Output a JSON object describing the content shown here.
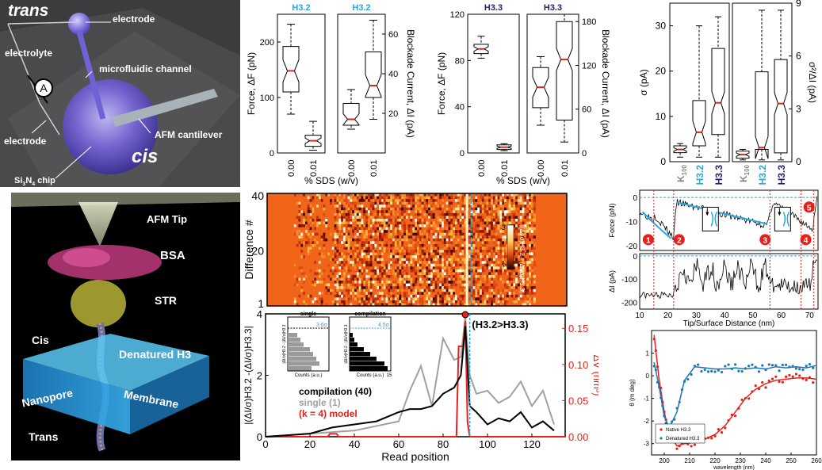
{
  "panel_a": {
    "trans": "trans",
    "electrode_top": "electrode",
    "electrolyte": "electrolyte",
    "meter": "A",
    "microfluidic": "microfluidic channel",
    "electrode_bottom": "electrode",
    "cantilever": "AFM cantilever",
    "cis": "cis",
    "chip_prefix": "Si",
    "chip_sub1": "3",
    "chip_mid": "N",
    "chip_sub2": "4",
    "chip_suffix": " chip"
  },
  "panel_b": {
    "afm_tip": "AFM Tip",
    "bsa": "BSA",
    "str": "STR",
    "cis": "Cis",
    "denatured": "Denatured H3",
    "membrane": "Membrane",
    "nanopore": "Nanopore",
    "trans": "Trans"
  },
  "colors": {
    "h32": "#29a8e0",
    "h33": "#1f1f6e",
    "red": "#e8201c",
    "blue": "#1f77b4"
  },
  "box_h32": {
    "left_title": "H3.2",
    "right_title": "H3.2",
    "left_ylabel": "Force, ΔF (pN)",
    "right_ylabel": "Blockade Current, ΔI (pA)",
    "left_ticks": [
      "0",
      "100",
      "200"
    ],
    "right_ticks": [
      "20",
      "40",
      "60"
    ],
    "x_ticks": [
      "0.00",
      "0.01"
    ],
    "xlabel": "% SDS (w/v)"
  },
  "box_h33": {
    "left_title": "H3.3",
    "right_title": "H3.3",
    "left_ylabel": "Force, ΔF (pN)",
    "right_ylabel": "Blockade Current, ΔI (pA)",
    "left_ticks": [
      "0",
      "40",
      "80",
      "120"
    ],
    "right_ticks": [
      "0",
      "60",
      "120",
      "180"
    ],
    "x_ticks": [
      "0.00",
      "0.01"
    ],
    "xlabel": "% SDS (w/v)"
  },
  "box_sigma": {
    "left_ylabel": "σ (pA)",
    "right_ylabel": "σ²/ΔI (pA)",
    "left_ticks": [
      "0",
      "10",
      "20",
      "30"
    ],
    "right_ticks": [
      "0",
      "3",
      "6",
      "9"
    ],
    "cats": [
      "K",
      "H3.2",
      "H3.3"
    ],
    "k_sub": "100"
  },
  "heatmap": {
    "ylabel": "Difference #",
    "y_ticks": [
      "1",
      "20",
      "40"
    ],
    "cb_ticks": [
      "3",
      "0"
    ],
    "cb_label": "|(ΔI/σ)H3.2 - (ΔI/σ)H3.3|"
  },
  "diff_plot": {
    "ylabel": "|(ΔI/σ)H3.2 -(ΔI/σ)H3.3|",
    "y2label": "ΔV (nm³)",
    "xlabel": "Read position",
    "x_ticks": [
      "0",
      "20",
      "40",
      "60",
      "80",
      "100",
      "120"
    ],
    "y_ticks": [
      "0",
      "2",
      "4"
    ],
    "y2_ticks": [
      "0.00",
      "0.05",
      "0.10",
      "0.15"
    ],
    "annotation": "(H3.2>H3.3)",
    "legend_compilation": "compilation (40)",
    "legend_single": "single (1)",
    "legend_model": "(k = 4) model",
    "inset_single_title": "single",
    "inset_single_value": "3.6σ",
    "inset_comp_title": "compilation",
    "inset_comp_value": "4.5σ",
    "inset_xlabel": "Counts (a.u.)",
    "inset_ylabel": "|ΔI/σ|H3.2 - |ΔI/σ|H3.3",
    "inset_tick_15": "15"
  },
  "trace": {
    "force_label": "Force (pN)",
    "current_label": "ΔI (pA)",
    "xlabel": "Tip/Surface Distance (nm)",
    "force_ticks": [
      "0",
      "-10",
      "-20"
    ],
    "current_ticks": [
      "0",
      "-100",
      "-200"
    ],
    "x_ticks": [
      "10",
      "20",
      "30",
      "40",
      "50",
      "60",
      "70"
    ],
    "markers": [
      "1",
      "2",
      "3",
      "4",
      "5"
    ]
  },
  "cd": {
    "ylabel": "θ (m deg)",
    "xlabel": "wavelength (nm)",
    "x_ticks": [
      "200",
      "210",
      "220",
      "230",
      "240",
      "250",
      "260"
    ],
    "y_ticks": [
      "1",
      "0",
      "-1",
      "-2",
      "-3"
    ],
    "legend_native": "Native H3.3",
    "legend_denatured": "Denatured H3.3"
  },
  "chart_data": [
    {
      "type": "box",
      "panel": "H3.2 force and current vs SDS",
      "categories": [
        "0.00",
        "0.01"
      ],
      "series": [
        {
          "name": "Force, ΔF (pN)",
          "median": [
            148,
            22
          ],
          "q1": [
            110,
            12
          ],
          "q3": [
            192,
            32
          ],
          "whisker_low": [
            70,
            5
          ],
          "whisker_high": [
            232,
            57
          ]
        },
        {
          "name": "Blockade Current, ΔI (pA)",
          "median": [
            17,
            34
          ],
          "q1": [
            14,
            28
          ],
          "q3": [
            25,
            51
          ],
          "whisker_low": [
            12,
            17
          ],
          "whisker_high": [
            32,
            67
          ]
        }
      ],
      "ylim_left": [
        0,
        250
      ],
      "ylim_right": [
        0,
        70
      ]
    },
    {
      "type": "box",
      "panel": "H3.3 force and current vs SDS",
      "categories": [
        "0.00",
        "0.01"
      ],
      "series": [
        {
          "name": "Force, ΔF (pN)",
          "median": [
            90,
            5
          ],
          "q1": [
            86,
            3
          ],
          "q3": [
            94,
            7
          ],
          "whisker_low": [
            82,
            2
          ],
          "whisker_high": [
            101,
            8
          ]
        },
        {
          "name": "Blockade Current, ΔI (pA)",
          "median": [
            90,
            128
          ],
          "q1": [
            62,
            45
          ],
          "q3": [
            117,
            180
          ],
          "whisker_low": [
            38,
            15
          ],
          "whisker_high": [
            132,
            190
          ]
        }
      ],
      "ylim_left": [
        0,
        120
      ],
      "ylim_right": [
        0,
        190
      ]
    },
    {
      "type": "box",
      "panel": "sigma and sigma^2/ΔI",
      "categories": [
        "K100",
        "H3.2",
        "H3.3"
      ],
      "series": [
        {
          "name": "σ (pA)",
          "median": [
            2.7,
            6.5,
            13
          ],
          "q1": [
            2,
            3.5,
            6
          ],
          "q3": [
            3.5,
            13.5,
            25
          ],
          "whisker_low": [
            1,
            1,
            1
          ],
          "whisker_high": [
            4,
            30,
            32
          ]
        },
        {
          "name": "σ²/ΔI (pA)",
          "median": [
            0.4,
            0.8,
            3.3
          ],
          "q1": [
            0.2,
            0.7,
            0.5
          ],
          "q3": [
            0.6,
            5.1,
            5.8
          ],
          "whisker_low": [
            0.1,
            0.1,
            0.1
          ],
          "whisker_high": [
            0.7,
            8.6,
            8.6
          ]
        }
      ],
      "ylim_left": [
        0,
        35
      ],
      "ylim_right": [
        0,
        9
      ]
    },
    {
      "type": "line",
      "panel": "difference vs read position",
      "xlim": [
        0,
        135
      ],
      "ylim": [
        0,
        4
      ],
      "y2lim": [
        0,
        0.17
      ],
      "series": [
        {
          "name": "compilation (40)",
          "x": [
            0,
            10,
            20,
            30,
            40,
            50,
            60,
            65,
            70,
            75,
            80,
            85,
            88,
            90,
            92,
            95,
            100,
            105,
            110,
            115,
            120,
            125,
            130
          ],
          "y": [
            0,
            0.05,
            0.1,
            0.3,
            0.4,
            0.5,
            0.8,
            0.9,
            0.9,
            1.0,
            1.4,
            1.6,
            2.0,
            3.6,
            1.0,
            0.8,
            0.4,
            0.6,
            0.5,
            0.8,
            0.3,
            0.5,
            0.2
          ]
        },
        {
          "name": "single (1)",
          "x": [
            0,
            20,
            40,
            60,
            65,
            70,
            75,
            80,
            85,
            88,
            90,
            92,
            95,
            100,
            105,
            110,
            115,
            120,
            125,
            130
          ],
          "y": [
            0,
            0.1,
            0.2,
            0.5,
            1.5,
            2.3,
            1.0,
            3.2,
            2.5,
            2.6,
            3.9,
            2.0,
            1.4,
            1.5,
            1.1,
            1.3,
            1.8,
            1.0,
            1.5,
            0.4
          ]
        },
        {
          "name": "(k = 4) model",
          "x": [
            0,
            28,
            29,
            32,
            33,
            86,
            87,
            89,
            90,
            91,
            92,
            135
          ],
          "y2": [
            0,
            0,
            0.004,
            0.004,
            0,
            0,
            0.125,
            0.125,
            0.16,
            0.02,
            0,
            0
          ]
        }
      ]
    },
    {
      "type": "line",
      "panel": "force and current traces",
      "xlim": [
        10,
        73
      ],
      "series": [
        {
          "name": "Force (pN)",
          "ylim": [
            -22,
            3
          ]
        },
        {
          "name": "ΔI (pA)",
          "ylim": [
            -230,
            10
          ]
        }
      ]
    },
    {
      "type": "scatter",
      "panel": "circular dichroism",
      "xlim": [
        195,
        260
      ],
      "ylim": [
        -3.5,
        2
      ],
      "series": [
        {
          "name": "Native H3.3",
          "x": [
            196,
            198,
            200,
            202,
            205,
            208,
            212,
            216,
            220,
            224,
            228,
            232,
            236,
            240,
            244,
            248,
            252,
            256,
            260
          ],
          "y": [
            1.8,
            -0.2,
            -1.6,
            -2.6,
            -3.1,
            -3.0,
            -2.95,
            -2.8,
            -2.6,
            -2.2,
            -1.6,
            -1.0,
            -0.6,
            -0.35,
            -0.2,
            -0.15,
            -0.1,
            -0.1,
            -0.15
          ]
        },
        {
          "name": "Denatured H3.3",
          "x": [
            196,
            198,
            200,
            202,
            205,
            208,
            212,
            216,
            220,
            224,
            228,
            232,
            236,
            240,
            244,
            248,
            252,
            256,
            260
          ],
          "y": [
            0.6,
            -0.5,
            -1.8,
            -2.3,
            -1.6,
            -0.2,
            0.4,
            0.35,
            0.3,
            0.3,
            0.35,
            0.3,
            0.35,
            0.3,
            0.4,
            0.35,
            0.4,
            0.35,
            0.45
          ]
        }
      ]
    }
  ]
}
